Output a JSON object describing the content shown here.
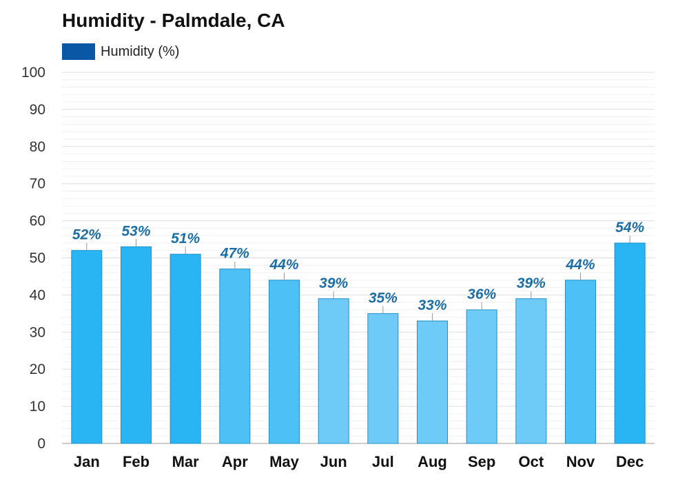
{
  "chart_data": {
    "type": "bar",
    "title": "Humidity - Palmdale, CA",
    "categories": [
      "Jan",
      "Feb",
      "Mar",
      "Apr",
      "May",
      "Jun",
      "Jul",
      "Aug",
      "Sep",
      "Oct",
      "Nov",
      "Dec"
    ],
    "series": [
      {
        "name": "Humidity (%)",
        "values": [
          52,
          53,
          51,
          47,
          44,
          39,
          35,
          33,
          36,
          39,
          44,
          54
        ]
      }
    ],
    "data_labels": [
      "52%",
      "53%",
      "51%",
      "47%",
      "44%",
      "39%",
      "35%",
      "33%",
      "36%",
      "39%",
      "44%",
      "54%"
    ],
    "ylim": [
      0,
      100
    ],
    "yticks": [
      0,
      10,
      20,
      30,
      40,
      50,
      60,
      70,
      80,
      90,
      100
    ],
    "grid": true,
    "legend": "top-left",
    "colors": {
      "legend": "#0a57a6",
      "bar_dark": "#29b5f4",
      "bar_mid": "#4dc0f6",
      "bar_light": "#6ecbf8",
      "bar_stroke": "#1f8fc6",
      "label": "#1b6ea6"
    },
    "bar_shades": [
      "dark",
      "dark",
      "dark",
      "mid",
      "mid",
      "light",
      "light",
      "light",
      "light",
      "light",
      "mid",
      "dark"
    ]
  }
}
